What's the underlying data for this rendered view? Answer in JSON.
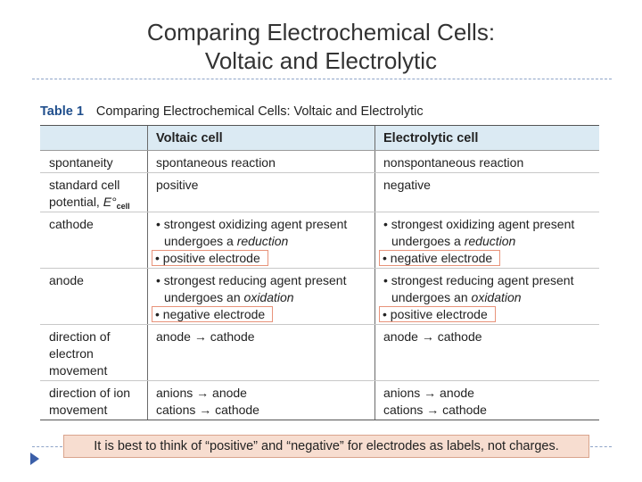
{
  "slide": {
    "title_line1": "Comparing Electrochemical Cells:",
    "title_line2": "Voltaic and Electrolytic",
    "note": "It is best to think of “positive” and “negative” for electrodes as labels, not charges."
  },
  "table": {
    "number": "Table 1",
    "title": "Comparing Electrochemical Cells: Voltaic and Electrolytic",
    "headers": [
      "",
      "Voltaic cell",
      "Electrolytic cell"
    ],
    "rows": {
      "spontaneity": {
        "label": "spontaneity",
        "voltaic": "spontaneous reaction",
        "electrolytic": "nonspontaneous reaction"
      },
      "potential": {
        "label_line1": "standard cell",
        "label_line2_prefix": "potential, ",
        "label_symbol": "E°",
        "label_subscript": "cell",
        "voltaic": "positive",
        "electrolytic": "negative"
      },
      "cathode": {
        "label": "cathode",
        "voltaic_line1": "• strongest oxidizing agent present",
        "voltaic_line2_prefix": "undergoes a ",
        "voltaic_line2_em": "reduction",
        "voltaic_line3": "• positive electrode",
        "electrolytic_line1": "• strongest oxidizing agent present",
        "electrolytic_line2_prefix": "undergoes a ",
        "electrolytic_line2_em": "reduction",
        "electrolytic_line3": "• negative electrode"
      },
      "anode": {
        "label": "anode",
        "voltaic_line1": "• strongest reducing agent present",
        "voltaic_line2_prefix": "undergoes an ",
        "voltaic_line2_em": "oxidation",
        "voltaic_line3": "• negative electrode",
        "electrolytic_line1": "• strongest reducing agent present",
        "electrolytic_line2_prefix": "undergoes an ",
        "electrolytic_line2_em": "oxidation",
        "electrolytic_line3": "• positive electrode"
      },
      "electron_movement": {
        "label_line1": "direction of",
        "label_line2": "electron",
        "label_line3": "movement",
        "voltaic": "anode → cathode",
        "electrolytic": "anode → cathode"
      },
      "ion_movement": {
        "label_line1": "direction of ion",
        "label_line2": "movement",
        "voltaic_line1": "anions → anode",
        "voltaic_line2": "cations → cathode",
        "electrolytic_line1": "anions → anode",
        "electrolytic_line2": "cations → cathode"
      }
    }
  },
  "icons": {
    "bullet": "triangle-bullet-icon"
  },
  "colors": {
    "header_fill": "#dbeaf3",
    "highlight_border": "#e8937a",
    "note_fill": "#f7ddd0",
    "table_number": "#1f4e8c",
    "rule": "#8ea4c8"
  }
}
